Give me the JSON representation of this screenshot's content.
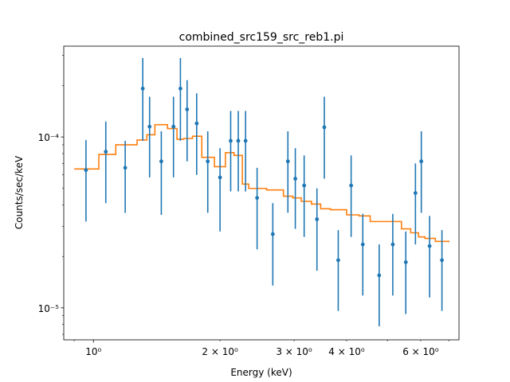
{
  "chart_data": {
    "type": "scatter",
    "title": "combined_src159_src_reb1.pi",
    "xlabel": "Energy (keV)",
    "ylabel": "Counts/sec/keV",
    "x_scale": "log",
    "y_scale": "log",
    "xlim": [
      0.85,
      7.4
    ],
    "ylim": [
      6.5e-06,
      0.00034
    ],
    "grid": false,
    "x_major_ticks": [
      {
        "value": 1,
        "label": "10⁰"
      }
    ],
    "x_minor_tick_values": [
      0.9,
      2,
      3,
      4,
      5,
      6,
      7
    ],
    "x_minor_tick_labels": [
      {
        "value": 2,
        "label": "2 × 10⁰"
      },
      {
        "value": 3,
        "label": "3 × 10⁰"
      },
      {
        "value": 4,
        "label": "4 × 10⁰"
      },
      {
        "value": 6,
        "label": "6 × 10⁰"
      }
    ],
    "y_major_ticks": [
      {
        "value": 1e-05,
        "label": "10⁻⁵"
      },
      {
        "value": 0.0001,
        "label": "10⁻⁴"
      }
    ],
    "y_minor_tick_values": [
      7e-06,
      8e-06,
      9e-06,
      2e-05,
      3e-05,
      4e-05,
      5e-05,
      6e-05,
      7e-05,
      8e-05,
      9e-05,
      0.0002,
      0.0003
    ],
    "series": [
      {
        "kind": "errorbar",
        "color": "#1f77b4",
        "points": [
          {
            "x": 0.96,
            "y": 6.4e-05,
            "ylo": 3.2e-05,
            "yhi": 9.6e-05
          },
          {
            "x": 1.07,
            "y": 8.2e-05,
            "ylo": 4.1e-05,
            "yhi": 0.000123
          },
          {
            "x": 1.19,
            "y": 6.6e-05,
            "ylo": 3.6e-05,
            "yhi": 9.5e-05
          },
          {
            "x": 1.31,
            "y": 0.000192,
            "ylo": 9.5e-05,
            "yhi": 0.00029
          },
          {
            "x": 1.36,
            "y": 0.000115,
            "ylo": 5.8e-05,
            "yhi": 0.000172
          },
          {
            "x": 1.45,
            "y": 7.2e-05,
            "ylo": 3.5e-05,
            "yhi": 0.000108
          },
          {
            "x": 1.55,
            "y": 0.000115,
            "ylo": 5.8e-05,
            "yhi": 0.000172
          },
          {
            "x": 1.61,
            "y": 0.000192,
            "ylo": 9.5e-05,
            "yhi": 0.00029
          },
          {
            "x": 1.67,
            "y": 0.000145,
            "ylo": 7.2e-05,
            "yhi": 0.000215
          },
          {
            "x": 1.76,
            "y": 0.00012,
            "ylo": 6e-05,
            "yhi": 0.00018
          },
          {
            "x": 1.87,
            "y": 7.2e-05,
            "ylo": 3.6e-05,
            "yhi": 0.000108
          },
          {
            "x": 2.0,
            "y": 5.8e-05,
            "ylo": 2.8e-05,
            "yhi": 8.6e-05
          },
          {
            "x": 2.12,
            "y": 9.5e-05,
            "ylo": 4.8e-05,
            "yhi": 0.000142
          },
          {
            "x": 2.21,
            "y": 9.5e-05,
            "ylo": 4.8e-05,
            "yhi": 0.000142
          },
          {
            "x": 2.3,
            "y": 9.5e-05,
            "ylo": 4.8e-05,
            "yhi": 0.000142
          },
          {
            "x": 2.45,
            "y": 4.4e-05,
            "ylo": 2.2e-05,
            "yhi": 6.6e-05
          },
          {
            "x": 2.67,
            "y": 2.7e-05,
            "ylo": 1.35e-05,
            "yhi": 4.1e-05
          },
          {
            "x": 2.9,
            "y": 7.2e-05,
            "ylo": 3.6e-05,
            "yhi": 0.000108
          },
          {
            "x": 3.02,
            "y": 5.7e-05,
            "ylo": 2.9e-05,
            "yhi": 8.6e-05
          },
          {
            "x": 3.17,
            "y": 5.2e-05,
            "ylo": 2.6e-05,
            "yhi": 7.8e-05
          },
          {
            "x": 3.4,
            "y": 3.3e-05,
            "ylo": 1.65e-05,
            "yhi": 5e-05
          },
          {
            "x": 3.54,
            "y": 0.000114,
            "ylo": 5.7e-05,
            "yhi": 0.000172
          },
          {
            "x": 3.82,
            "y": 1.9e-05,
            "ylo": 9.6e-06,
            "yhi": 2.85e-05
          },
          {
            "x": 4.1,
            "y": 5.2e-05,
            "ylo": 2.6e-05,
            "yhi": 7.8e-05
          },
          {
            "x": 4.37,
            "y": 2.35e-05,
            "ylo": 1.18e-05,
            "yhi": 3.55e-05
          },
          {
            "x": 4.78,
            "y": 1.55e-05,
            "ylo": 7.8e-06,
            "yhi": 2.35e-05
          },
          {
            "x": 5.15,
            "y": 2.35e-05,
            "ylo": 1.18e-05,
            "yhi": 3.55e-05
          },
          {
            "x": 5.53,
            "y": 1.85e-05,
            "ylo": 9.2e-06,
            "yhi": 2.8e-05
          },
          {
            "x": 5.83,
            "y": 4.7e-05,
            "ylo": 2.35e-05,
            "yhi": 7e-05
          },
          {
            "x": 6.02,
            "y": 7.2e-05,
            "ylo": 3.6e-05,
            "yhi": 0.000108
          },
          {
            "x": 6.3,
            "y": 2.3e-05,
            "ylo": 1.15e-05,
            "yhi": 3.45e-05
          },
          {
            "x": 6.74,
            "y": 1.9e-05,
            "ylo": 9.6e-06,
            "yhi": 2.85e-05
          }
        ]
      },
      {
        "kind": "step",
        "color": "#ff7f0e",
        "edges": [
          0.9,
          1.03,
          1.13,
          1.27,
          1.34,
          1.4,
          1.5,
          1.58,
          1.64,
          1.72,
          1.81,
          1.94,
          2.06,
          2.16,
          2.26,
          2.34,
          2.58,
          2.83,
          2.98,
          3.12,
          3.3,
          3.47,
          3.66,
          4.0,
          4.28,
          4.55,
          5.0,
          5.4,
          5.68,
          5.93,
          6.14,
          6.5,
          7.0
        ],
        "values": [
          6.5e-05,
          7.9e-05,
          9e-05,
          9.6e-05,
          0.000103,
          0.000118,
          0.000112,
          9.7e-05,
          9.8e-05,
          0.000101,
          7.6e-05,
          6.7e-05,
          8.1e-05,
          7.8e-05,
          5.3e-05,
          5e-05,
          4.9e-05,
          4.5e-05,
          4.4e-05,
          4.2e-05,
          4.05e-05,
          3.8e-05,
          3.75e-05,
          3.5e-05,
          3.45e-05,
          3.2e-05,
          3.2e-05,
          2.9e-05,
          2.75e-05,
          2.6e-05,
          2.55e-05,
          2.45e-05,
          2.42e-05
        ]
      }
    ]
  }
}
